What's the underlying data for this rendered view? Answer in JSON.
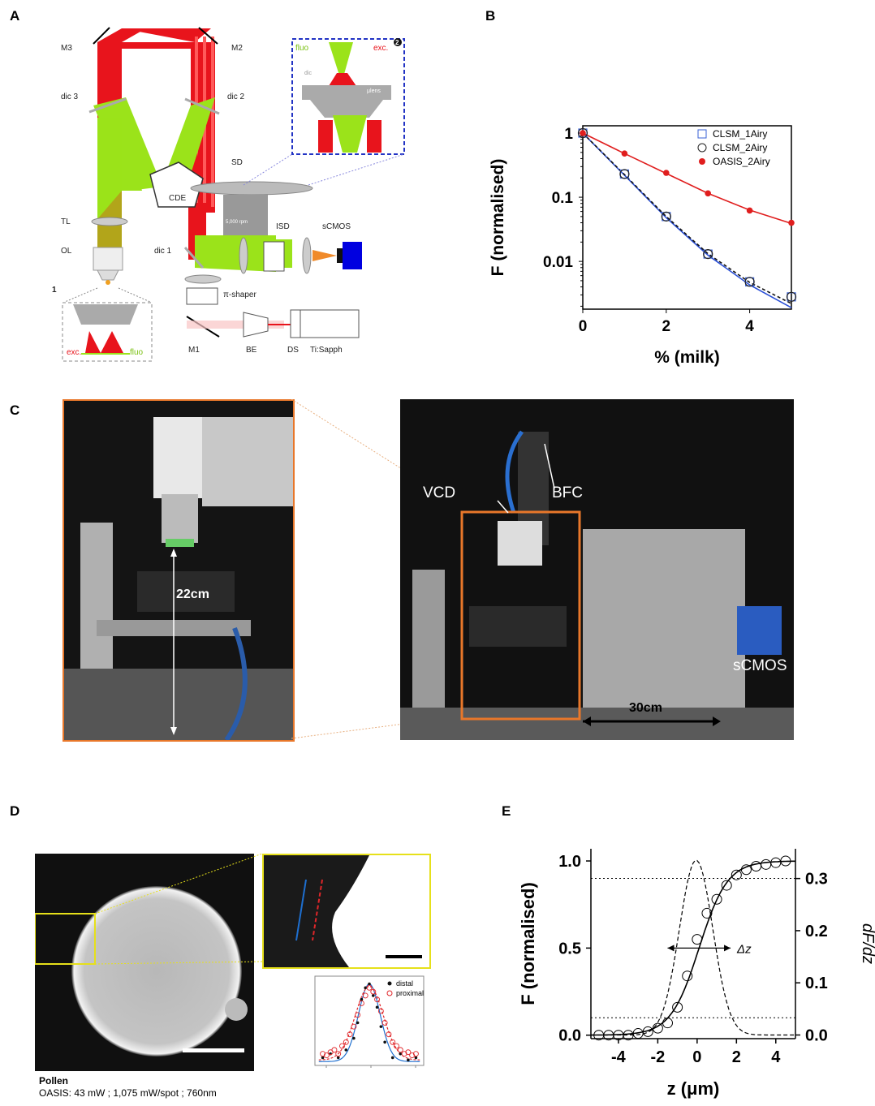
{
  "panels": {
    "A": {
      "letter": "A",
      "labels": {
        "M3": "M3",
        "M2": "M2",
        "dic3": "dic 3",
        "dic2": "dic 2",
        "dic1": "dic 1",
        "CDE": "CDE",
        "SD": "SD",
        "rpm": "5,000 rpm",
        "TL": "TL",
        "OL": "OL",
        "ISD": "ISD",
        "sCMOS": "sCMOS",
        "pishaper": "π-shaper",
        "M1": "M1",
        "BE": "BE",
        "DS": "DS",
        "TiSapph": "Ti:Sapph",
        "inset1_num": "1",
        "inset1_exc": "exc.",
        "inset1_fluo": "fluo",
        "inset2_num": "2",
        "inset2_fluo": "fluo",
        "inset2_exc": "exc.",
        "inset2_dic": "dic",
        "inset2_ulens": "μlens"
      },
      "colors": {
        "excitation": "#e8141c",
        "fluorescence": "#9be31a",
        "inset_border": "#2233c4"
      }
    },
    "B": {
      "letter": "B"
    },
    "C": {
      "letter": "C",
      "labels": {
        "dim_left": "22cm",
        "VCD": "VCD",
        "BFC": "BFC",
        "sCMOS": "sCMOS",
        "dim_right": "30cm"
      },
      "colors": {
        "frame": "#e8772a"
      }
    },
    "D": {
      "letter": "D",
      "caption_title": "Pollen",
      "caption_detail": "OASIS: 43 mW ; 1,075 mW/spot ; 760nm",
      "legend": {
        "distal": "distal",
        "proximal": "proximal"
      },
      "colors": {
        "inset_border": "#e6e01a",
        "distal_line": "#1e6fd0",
        "proximal_line": "#e0262a"
      }
    },
    "E": {
      "letter": "E",
      "annotation": "Δz"
    }
  },
  "chart_data": [
    {
      "id": "B",
      "type": "scatter",
      "xlabel": "% (milk)",
      "ylabel": "F (normalised)",
      "xlim": [
        0,
        5
      ],
      "ylim": [
        0.0018,
        1.3
      ],
      "yscale": "log",
      "xticks": [
        0,
        2,
        4
      ],
      "yticks": [
        1,
        0.1,
        0.01
      ],
      "ytick_labels": [
        "1",
        "0.1",
        "0.01"
      ],
      "legend_position": "top-right",
      "series": [
        {
          "name": "CLSM_1Airy",
          "marker": "open-square",
          "color": "#3a62d6",
          "x": [
            0,
            1,
            2,
            3,
            4,
            5
          ],
          "y": [
            1.0,
            0.23,
            0.05,
            0.013,
            0.0048,
            0.0028
          ]
        },
        {
          "name": "CLSM_2Airy",
          "marker": "open-circle",
          "color": "#222222",
          "x": [
            0,
            1,
            2,
            3,
            4,
            5
          ],
          "y": [
            1.0,
            0.23,
            0.05,
            0.013,
            0.0048,
            0.0028
          ]
        },
        {
          "name": "OASIS_2Airy",
          "marker": "filled-circle",
          "color": "#e01e1e",
          "x": [
            0,
            1,
            2,
            3,
            4,
            5
          ],
          "y": [
            1.0,
            0.48,
            0.24,
            0.115,
            0.062,
            0.04
          ]
        }
      ],
      "fits": [
        {
          "style": "solid",
          "color": "#2a4fd6",
          "x": [
            0,
            1,
            2,
            3,
            4,
            5
          ],
          "y": [
            1.0,
            0.22,
            0.048,
            0.0125,
            0.0043,
            0.0019
          ]
        },
        {
          "style": "dashed",
          "color": "#111111",
          "x": [
            0,
            1,
            2,
            3,
            4,
            5
          ],
          "y": [
            1.0,
            0.225,
            0.05,
            0.0132,
            0.0047,
            0.0022
          ]
        },
        {
          "style": "solid",
          "color": "#e01e1e",
          "x": [
            0,
            1,
            2,
            3,
            4,
            5
          ],
          "y": [
            1.0,
            0.48,
            0.235,
            0.115,
            0.063,
            0.039
          ]
        }
      ]
    },
    {
      "id": "D-profile",
      "type": "scatter",
      "series": [
        {
          "name": "distal",
          "marker": "filled-circle",
          "color": "#111111",
          "x": [
            -6,
            -5,
            -4,
            -3,
            -2,
            -1.5,
            -1,
            -0.5,
            0,
            0.5,
            1,
            1.5,
            2,
            3,
            4,
            5,
            6
          ],
          "y": [
            0.05,
            0.1,
            0.05,
            0.15,
            0.3,
            0.5,
            0.8,
            0.95,
            1.0,
            0.85,
            0.7,
            0.45,
            0.25,
            0.05,
            0.1,
            0.02,
            0.05
          ]
        },
        {
          "name": "proximal",
          "marker": "open-circle",
          "color": "#e0262a",
          "x": [
            -6,
            -5.5,
            -5,
            -4.5,
            -4,
            -3.5,
            -3,
            -2.5,
            -2,
            -1.5,
            -1,
            -0.5,
            0,
            0.5,
            1,
            1.5,
            2,
            2.5,
            3,
            3.5,
            4,
            4.5,
            5,
            5.5,
            6
          ],
          "y": [
            0.1,
            0.08,
            0.12,
            0.15,
            0.1,
            0.2,
            0.25,
            0.35,
            0.45,
            0.6,
            0.75,
            0.85,
            0.95,
            0.9,
            0.8,
            0.65,
            0.5,
            0.35,
            0.25,
            0.2,
            0.15,
            0.1,
            0.12,
            0.08,
            0.1
          ]
        }
      ]
    },
    {
      "id": "E",
      "type": "line",
      "xlabel": "z (μm)",
      "ylabel": "F (normalised)",
      "y2label": "dF/dz",
      "xlim": [
        -5.4,
        5.0
      ],
      "ylim": [
        -0.02,
        1.07
      ],
      "y2lim": [
        -0.007,
        0.357
      ],
      "xticks": [
        -4,
        -2,
        0,
        2,
        4
      ],
      "yticks": [
        0.0,
        0.5,
        1.0
      ],
      "ytick_labels": [
        "0.0",
        "0.5",
        "1.0"
      ],
      "y2ticks": [
        0.0,
        0.1,
        0.2,
        0.3
      ],
      "y2tick_labels": [
        "0.0",
        "0.1",
        "0.2",
        "0.3"
      ],
      "hlines": [
        0.9,
        0.1
      ],
      "series": [
        {
          "name": "",
          "marker": "open-circle",
          "x": [
            -5,
            -4.5,
            -4,
            -3.5,
            -3,
            -2.5,
            -2,
            -1.5,
            -1,
            -0.5,
            0,
            0.5,
            1,
            1.5,
            2,
            2.5,
            3,
            3.5,
            4,
            4.5
          ],
          "y": [
            0.0,
            0.0,
            0.0,
            0.0,
            0.01,
            0.02,
            0.04,
            0.07,
            0.16,
            0.34,
            0.55,
            0.7,
            0.78,
            0.86,
            0.92,
            0.95,
            0.97,
            0.98,
            0.99,
            1.0
          ]
        }
      ],
      "fit": {
        "type": "sigmoid",
        "center": 0.1,
        "width": 0.72
      },
      "derivative": {
        "axis": "y2",
        "peak": 0.335,
        "center": -0.05,
        "sigma": 0.85,
        "style": "dashed"
      },
      "annotation": {
        "from_x": -1.5,
        "to_x": 1.7,
        "y": 0.5
      }
    }
  ]
}
